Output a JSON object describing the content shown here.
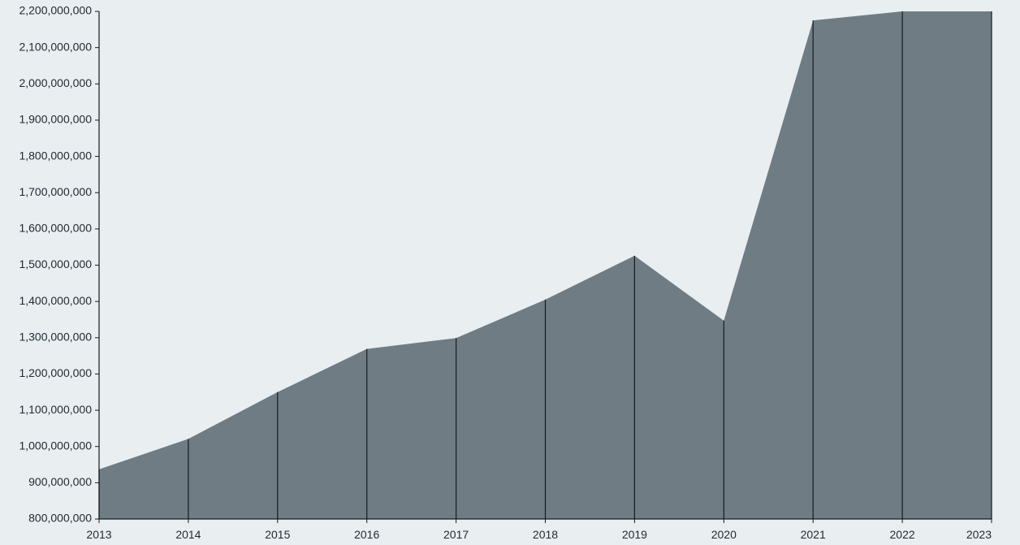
{
  "chart_data": {
    "type": "area",
    "title": "",
    "xlabel": "",
    "ylabel": "",
    "x": [
      "2013",
      "2014",
      "2015",
      "2016",
      "2017",
      "2018",
      "2019",
      "2020",
      "2021",
      "2022",
      "2023"
    ],
    "series": [
      {
        "values": [
          937000000,
          1021000000,
          1150000000,
          1269000000,
          1299000000,
          1405000000,
          1526000000,
          1347000000,
          2175000000,
          2200000000,
          2200000000
        ]
      }
    ],
    "ylim": [
      800000000,
      2200000000
    ],
    "yticks": [
      800000000,
      900000000,
      1000000000,
      1100000000,
      1200000000,
      1300000000,
      1400000000,
      1500000000,
      1600000000,
      1700000000,
      1800000000,
      1900000000,
      2000000000,
      2100000000,
      2200000000
    ],
    "ytick_labels": [
      "800,000,000",
      "900,000,000",
      "1,000,000,000",
      "1,100,000,000",
      "1,200,000,000",
      "1,300,000,000",
      "1,400,000,000",
      "1,500,000,000",
      "1,600,000,000",
      "1,700,000,000",
      "1,800,000,000",
      "1,900,000,000",
      "2,000,000,000",
      "2,100,000,000",
      "2,200,000,000"
    ],
    "grid": false,
    "legend": "none",
    "colors": {
      "fill": "#6f7c84",
      "drop_lines": "#141c21",
      "axis": "#141c21",
      "background": "#e9eef1"
    }
  }
}
